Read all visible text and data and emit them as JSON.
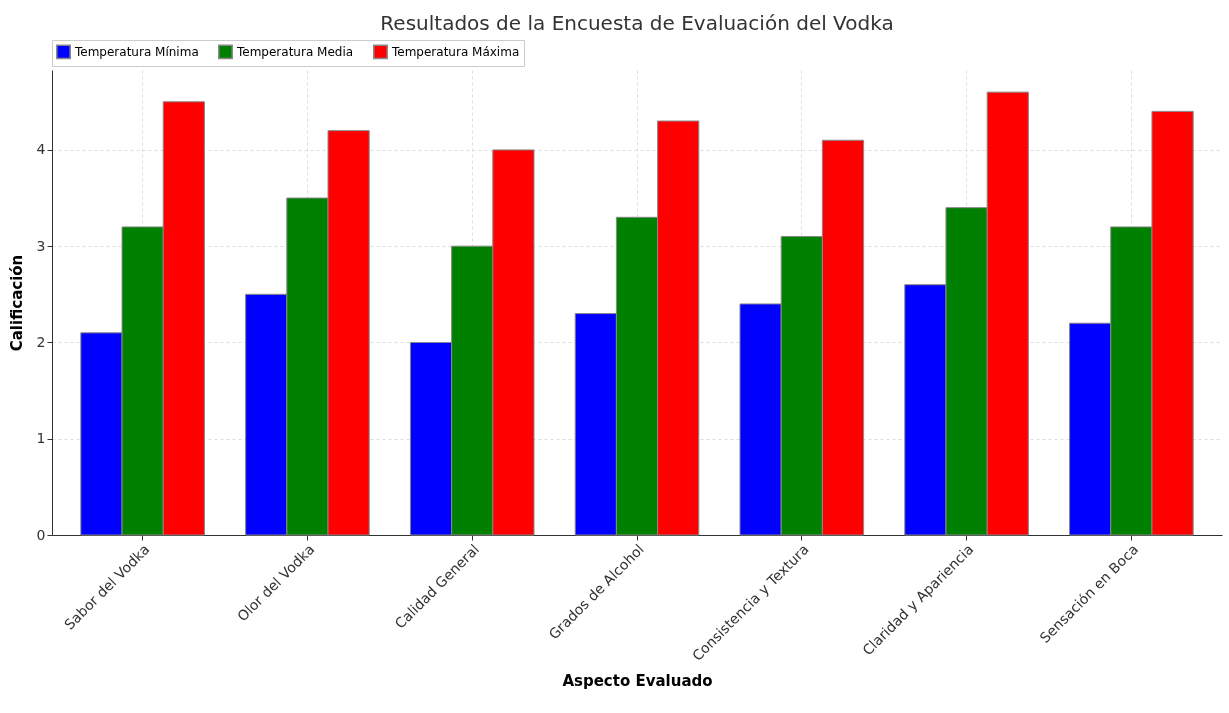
{
  "chart_data": {
    "type": "bar",
    "title": "Resultados de la Encuesta de Evaluación del Vodka",
    "xlabel": "Aspecto Evaluado",
    "ylabel": "Calificación",
    "categories": [
      "Sabor del Vodka",
      "Olor del Vodka",
      "Calidad General",
      "Grados de Alcohol",
      "Consistencia y Textura",
      "Claridad y Apariencia",
      "Sensación en Boca"
    ],
    "series": [
      {
        "name": "Temperatura Mínima",
        "color": "#0000ff",
        "values": [
          2.1,
          2.5,
          2.0,
          2.3,
          2.4,
          2.6,
          2.2
        ]
      },
      {
        "name": "Temperatura Media",
        "color": "#008000",
        "values": [
          3.2,
          3.5,
          3.0,
          3.3,
          3.1,
          3.4,
          3.2
        ]
      },
      {
        "name": "Temperatura Máxima",
        "color": "#ff0000",
        "values": [
          4.5,
          4.2,
          4.0,
          4.3,
          4.1,
          4.6,
          4.4
        ]
      }
    ],
    "ylim": [
      0,
      4.83
    ],
    "yticks": [
      0,
      1,
      2,
      3,
      4
    ],
    "grid": true,
    "legend": "top"
  }
}
